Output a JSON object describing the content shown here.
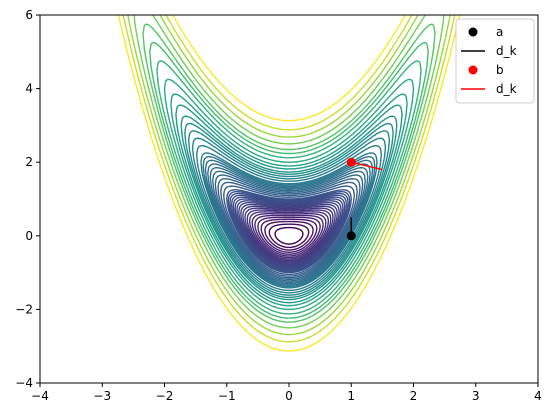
{
  "chart_data": {
    "type": "contour",
    "function": "x^2 + (y - x^2)^2",
    "xlim": [
      -4,
      4
    ],
    "ylim": [
      -4,
      6
    ],
    "xticks": [
      "−4",
      "−3",
      "−2",
      "−1",
      "0",
      "1",
      "2",
      "3",
      "4"
    ],
    "yticks": [
      "−4",
      "−2",
      "0",
      "2",
      "4",
      "6"
    ],
    "xtick_values": [
      -4,
      -3,
      -2,
      -1,
      0,
      1,
      2,
      3,
      4
    ],
    "ytick_values": [
      -4,
      -2,
      0,
      2,
      4,
      6
    ],
    "contour_levels": [
      0.05,
      0.1,
      0.15,
      0.2,
      0.25,
      0.3,
      0.35,
      0.4,
      0.45,
      0.5,
      0.55,
      0.6,
      0.65,
      0.7,
      0.75,
      0.8,
      0.85,
      0.9,
      0.95,
      1.0,
      1.1,
      1.2,
      1.3,
      1.4,
      1.5,
      1.6,
      1.7,
      1.8,
      1.9,
      2.0,
      2.2,
      2.4,
      2.6,
      2.8,
      3.0,
      3.3,
      3.6,
      4.0,
      4.5,
      5.0,
      5.5,
      6.25,
      7.2,
      8.3,
      9.8
    ],
    "colormap": [
      "#440154",
      "#482878",
      "#3e4989",
      "#31688e",
      "#26828e",
      "#1f9e89",
      "#35b779",
      "#6ece58",
      "#b5de2b",
      "#fde725"
    ],
    "series": [
      {
        "name": "a",
        "kind": "scatter",
        "x": [
          1
        ],
        "y": [
          0
        ],
        "color": "#000000"
      },
      {
        "name": "d_k",
        "kind": "line",
        "x": [
          1,
          1
        ],
        "y": [
          0,
          0.5
        ],
        "color": "#000000"
      },
      {
        "name": "b",
        "kind": "scatter",
        "x": [
          1
        ],
        "y": [
          2
        ],
        "color": "#ff0000"
      },
      {
        "name": "d_k",
        "kind": "line",
        "x": [
          1,
          1.5
        ],
        "y": [
          2,
          1.8
        ],
        "color": "#ff0000"
      }
    ],
    "legend": {
      "placement": "top-right",
      "entries": [
        {
          "label": "a",
          "marker": "dot",
          "color": "#000000"
        },
        {
          "label": "d_k",
          "marker": "line",
          "color": "#000000"
        },
        {
          "label": "b",
          "marker": "dot",
          "color": "#ff0000"
        },
        {
          "label": "d_k",
          "marker": "line",
          "color": "#ff0000"
        }
      ]
    },
    "grid": false
  }
}
